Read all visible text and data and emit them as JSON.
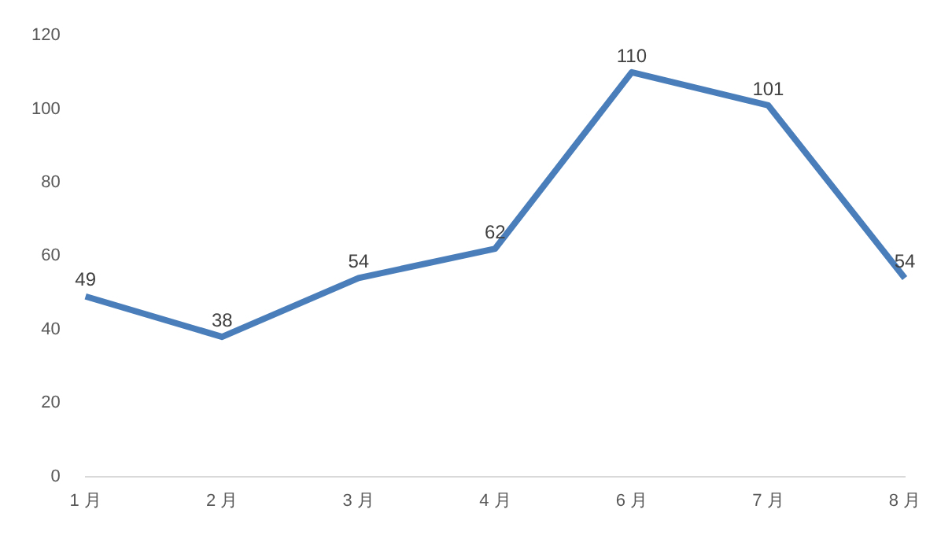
{
  "chart_data": {
    "type": "line",
    "categories": [
      "1 月",
      "2 月",
      "3 月",
      "4 月",
      "6 月",
      "7 月",
      "8 月"
    ],
    "series": [
      {
        "color": "#4a7ebb",
        "values": [
          49,
          38,
          54,
          62,
          110,
          101,
          54
        ]
      }
    ],
    "ylim": [
      0,
      120
    ],
    "yticks": [
      0,
      20,
      40,
      60,
      80,
      100,
      120
    ],
    "grid": false,
    "legend": false,
    "marker": "none",
    "line_style": "solid",
    "data_labels": true
  }
}
